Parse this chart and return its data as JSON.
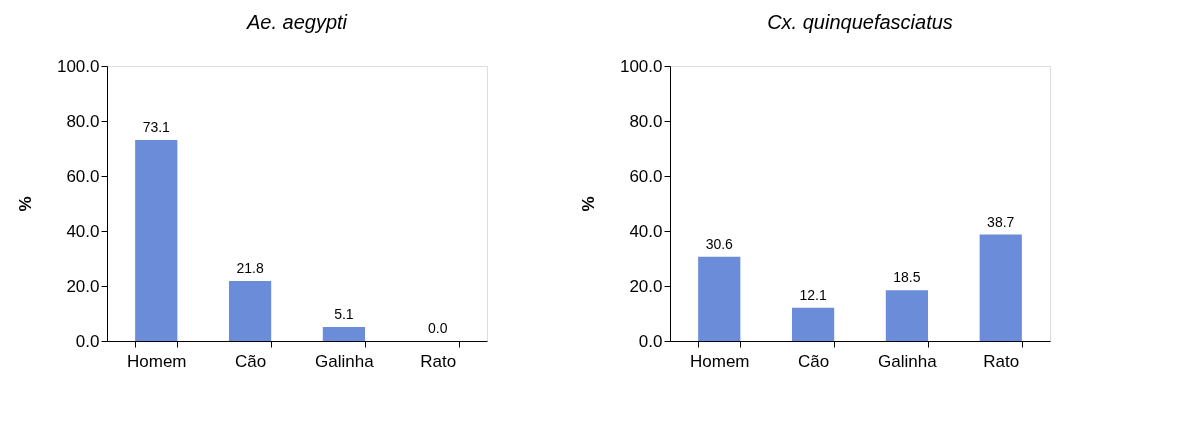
{
  "chart_data": [
    {
      "type": "bar",
      "title": "Ae. aegypti",
      "ylabel": "%",
      "categories": [
        "Homem",
        "Cão",
        "Galinha",
        "Rato"
      ],
      "values": [
        73.1,
        21.8,
        5.1,
        0.0
      ],
      "value_labels": [
        "73.1",
        "21.8",
        "5.1",
        "0.0"
      ],
      "color": "#6b8cd8",
      "ylim": [
        0,
        100
      ],
      "yticks": [
        {
          "value": 0,
          "label": "0.0"
        },
        {
          "value": 20,
          "label": "20.0"
        },
        {
          "value": 40,
          "label": "40.0"
        },
        {
          "value": 60,
          "label": "60.0"
        },
        {
          "value": 80,
          "label": "80.0"
        },
        {
          "value": 100,
          "label": "100.0"
        }
      ]
    },
    {
      "type": "bar",
      "title": "Cx. quinquefasciatus",
      "ylabel": "%",
      "categories": [
        "Homem",
        "Cão",
        "Galinha",
        "Rato"
      ],
      "values": [
        30.6,
        12.1,
        18.5,
        38.7
      ],
      "value_labels": [
        "30.6",
        "12.1",
        "18.5",
        "38.7"
      ],
      "color": "#6b8cd8",
      "ylim": [
        0,
        100
      ],
      "yticks": [
        {
          "value": 0,
          "label": "0.0"
        },
        {
          "value": 20,
          "label": "20.0"
        },
        {
          "value": 40,
          "label": "40.0"
        },
        {
          "value": 60,
          "label": "60.0"
        },
        {
          "value": 80,
          "label": "80.0"
        },
        {
          "value": 100,
          "label": "100.0"
        }
      ]
    }
  ]
}
